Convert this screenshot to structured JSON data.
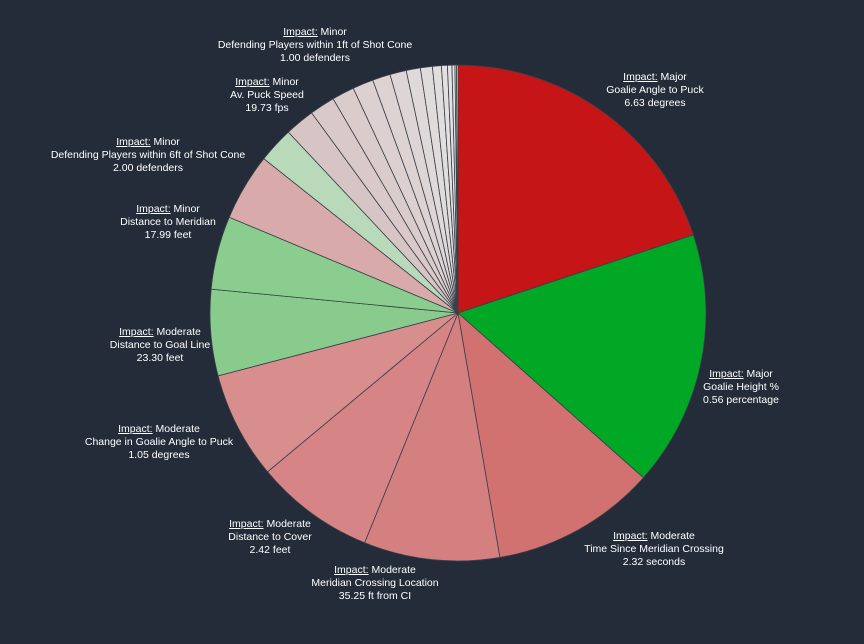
{
  "chart_data": {
    "type": "pie",
    "impact_key": "Impact:",
    "slices": [
      {
        "impact": "Major",
        "feature": "Goalie Angle to Puck",
        "value_label": "6.63 degrees",
        "share": 0.205,
        "color": "#c61516"
      },
      {
        "impact": "Major",
        "feature": "Goalie Height %",
        "value_label": "0.56 percentage",
        "share": 0.1716,
        "color": "#00a826"
      },
      {
        "impact": "Moderate",
        "feature": "Time Since Meridian Crossing",
        "value_label": "2.32 seconds",
        "share": 0.1106,
        "color": "#d17270"
      },
      {
        "impact": "Moderate",
        "feature": "Meridian Crossing Location",
        "value_label": "35.25 ft from CI",
        "share": 0.0911,
        "color": "#d47f80"
      },
      {
        "impact": "Moderate",
        "feature": "Distance to Cover",
        "value_label": "2.42 feet",
        "share": 0.0803,
        "color": "#d68486"
      },
      {
        "impact": "Moderate",
        "feature": "Change in Goalie Angle to Puck",
        "value_label": "1.05 degrees",
        "share": 0.0719,
        "color": "#d78e8d"
      },
      {
        "impact": "Moderate",
        "feature": "Distance to Goal Line",
        "value_label": "23.30 feet",
        "share": 0.0578,
        "color": "#88cb8d"
      },
      {
        "impact": "Minor",
        "feature": "Distance to Meridian",
        "value_label": "17.99 feet",
        "share": 0.0492,
        "color": "#8bcc8f"
      },
      {
        "impact": "Minor",
        "feature": "",
        "value_label": "",
        "share": 0.0451,
        "color": "#d8aaaa"
      },
      {
        "impact": "Minor",
        "feature": "Defending Players within 6ft of Shot Cone",
        "value_label": "2.00 defenders",
        "share": 0.0239,
        "color": "#b9d9bb"
      },
      {
        "impact": "Minor",
        "feature": "",
        "value_label": "",
        "share": 0.02,
        "color": "#d7c5c5"
      },
      {
        "impact": "Minor",
        "feature": "",
        "value_label": "",
        "share": 0.017,
        "color": "#d9c9c9"
      },
      {
        "impact": "Minor",
        "feature": "Av. Puck Speed",
        "value_label": "19.73 fps",
        "share": 0.015,
        "color": "#dbcccc"
      },
      {
        "impact": "Minor",
        "feature": "",
        "value_label": "",
        "share": 0.014,
        "color": "#dcd0d0"
      },
      {
        "impact": "Minor",
        "feature": "",
        "value_label": "",
        "share": 0.012,
        "color": "#ddd3d3"
      },
      {
        "impact": "Minor",
        "feature": "",
        "value_label": "",
        "share": 0.011,
        "color": "#ded6d6"
      },
      {
        "impact": "Minor",
        "feature": "",
        "value_label": "",
        "share": 0.0095,
        "color": "#dfd9d9"
      },
      {
        "impact": "Minor",
        "feature": "",
        "value_label": "",
        "share": 0.008,
        "color": "#e0dcdc"
      },
      {
        "impact": "Minor",
        "feature": "",
        "value_label": "",
        "share": 0.006,
        "color": "#e1dede"
      },
      {
        "impact": "Minor",
        "feature": "Defending Players within 1ft of Shot Cone",
        "value_label": "1.00 defenders",
        "share": 0.004,
        "color": "#e2e0e0"
      },
      {
        "impact": "Minor",
        "feature": "",
        "value_label": "",
        "share": 0.003,
        "color": "#e3e2e2"
      },
      {
        "impact": "Minor",
        "feature": "",
        "value_label": "",
        "share": 0.002,
        "color": "#e4e3e3"
      },
      {
        "impact": "Minor",
        "feature": "",
        "value_label": "",
        "share": 0.001,
        "color": "#e5e4e4"
      },
      {
        "impact": "Minor",
        "feature": "",
        "value_label": "",
        "share": 0.001,
        "color": "#e6e5e5"
      }
    ]
  }
}
